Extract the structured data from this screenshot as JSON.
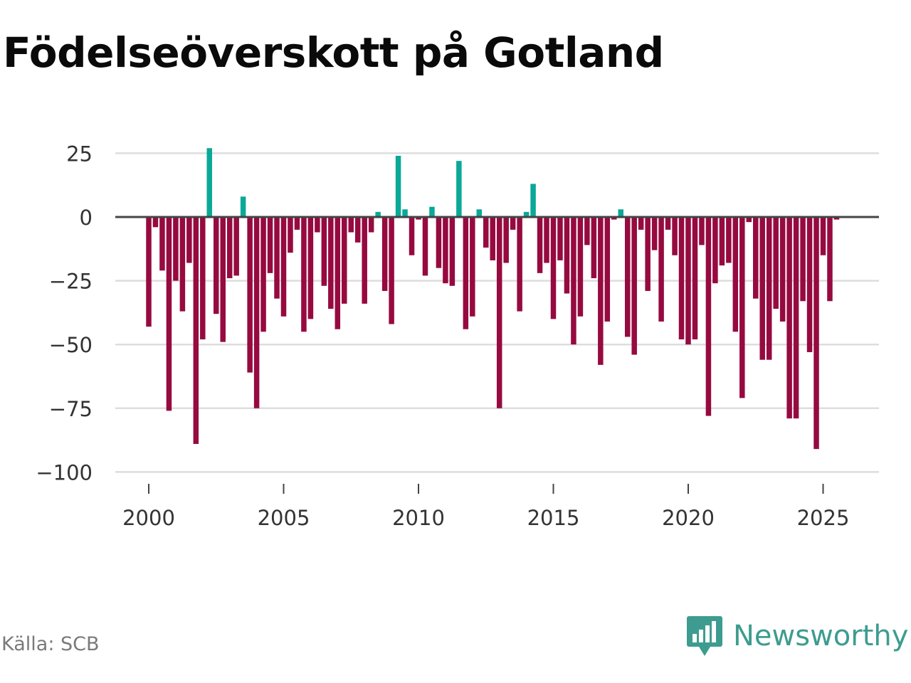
{
  "header": {
    "title": "Födelseöverskott på Gotland"
  },
  "footer": {
    "source": "Källa: SCB",
    "brand": "Newsworthy",
    "brand_icon": "newsworthy-logo-icon"
  },
  "colors": {
    "positive": "#0aa898",
    "negative": "#960a40",
    "grid": "#dddddd",
    "zero": "#444444",
    "tick_text": "#333333"
  },
  "chart_data": {
    "type": "bar",
    "title": "Födelseöverskott på Gotland",
    "xlabel": "",
    "ylabel": "",
    "ylim": [
      -100,
      30
    ],
    "y_ticks": [
      25,
      0,
      -25,
      -50,
      -75,
      -100
    ],
    "y_tick_labels": [
      "25",
      "0",
      "−25",
      "−50",
      "−75",
      "−100"
    ],
    "x_range": [
      2000,
      2026
    ],
    "x_ticks": [
      2000,
      2005,
      2010,
      2015,
      2020,
      2025
    ],
    "x_tick_labels": [
      "2000",
      "2005",
      "2010",
      "2015",
      "2020",
      "2025"
    ],
    "frequency": "quarterly",
    "start": 2000.0,
    "step": 0.25,
    "values": [
      -43,
      -4,
      -21,
      -76,
      -25,
      -37,
      -18,
      -89,
      -48,
      27,
      -38,
      -49,
      -24,
      -23,
      8,
      -61,
      -75,
      -45,
      -22,
      -32,
      -39,
      -14,
      -5,
      -45,
      -40,
      -6,
      -27,
      -36,
      -44,
      -34,
      -6,
      -10,
      -34,
      -6,
      2,
      -29,
      -42,
      24,
      3,
      -15,
      -1,
      -23,
      4,
      -20,
      -26,
      -27,
      22,
      -44,
      -39,
      3,
      -12,
      -17,
      -75,
      -18,
      -5,
      -37,
      2,
      13,
      -22,
      -18,
      -40,
      -17,
      -30,
      -50,
      -39,
      -11,
      -24,
      -58,
      -41,
      -1,
      3,
      -47,
      -54,
      -5,
      -29,
      -13,
      -41,
      -5,
      -15,
      -48,
      -50,
      -48,
      -11,
      -78,
      -26,
      -19,
      -18,
      -45,
      -71,
      -2,
      -32,
      -56,
      -56,
      -36,
      -41,
      -79,
      -79,
      -33,
      -53,
      -91,
      -15,
      -33,
      -1
    ]
  }
}
